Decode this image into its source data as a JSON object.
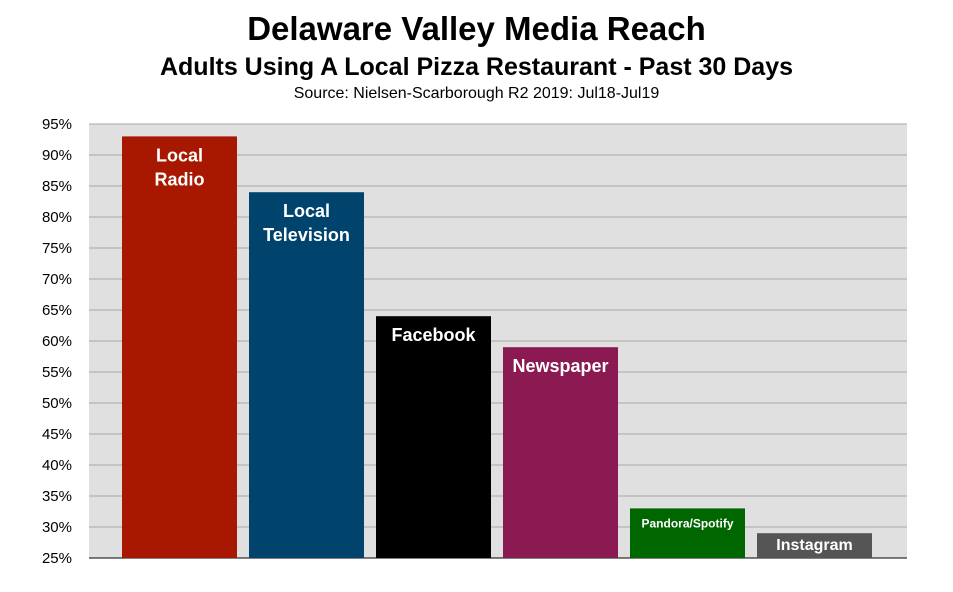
{
  "chart_data": {
    "type": "bar",
    "title": "Delaware Valley Media Reach",
    "subtitle": "Adults Using A Local Pizza Restaurant - Past 30 Days",
    "source": "Source: Nielsen-Scarborough R2 2019: Jul18-Jul19",
    "categories": [
      [
        "Local",
        "Radio"
      ],
      [
        "Local",
        "Television"
      ],
      [
        "Facebook"
      ],
      [
        "Newspaper"
      ],
      [
        "Pandora/Spotify"
      ],
      [
        "Instagram"
      ]
    ],
    "values": [
      93,
      84,
      64,
      59,
      33,
      29
    ],
    "colors": [
      "#a81800",
      "#00446e",
      "#000000",
      "#8b1a52",
      "#006600",
      "#555555"
    ],
    "ylim": [
      25,
      95
    ],
    "yticks": [
      "25%",
      "30%",
      "35%",
      "40%",
      "45%",
      "50%",
      "55%",
      "60%",
      "65%",
      "70%",
      "75%",
      "80%",
      "85%",
      "90%",
      "95%"
    ],
    "grid": true,
    "plot_background": "#e0e0e0",
    "grid_color": "#a8a8a8"
  }
}
